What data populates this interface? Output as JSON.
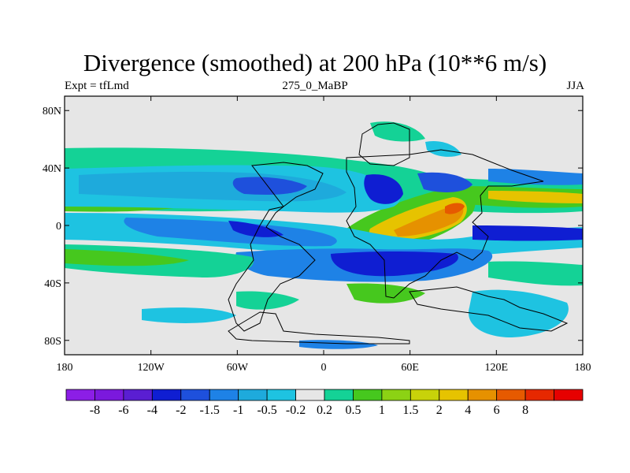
{
  "title": "Divergence (smoothed) at 200 hPa (10**6 m/s)",
  "subtitle_left": "Expt = tfLmd",
  "subtitle_center": "275_0_MaBP",
  "subtitle_right": "JJA",
  "lat_labels": [
    "80N",
    "40N",
    "0",
    "40S",
    "80S"
  ],
  "lat_values": [
    80,
    40,
    0,
    -40,
    -80
  ],
  "lon_labels": [
    "180",
    "120W",
    "60W",
    "0",
    "60E",
    "120E",
    "180"
  ],
  "lon_values": [
    -180,
    -120,
    -60,
    0,
    60,
    120,
    180
  ],
  "colorbar": {
    "colors": [
      "#8c1ee6",
      "#7b19dd",
      "#5a1ed2",
      "#0f1ed2",
      "#1e50dc",
      "#1e82e6",
      "#1eaadc",
      "#1ec3e1",
      "#e6e6e6",
      "#14d296",
      "#46c81e",
      "#8cd214",
      "#c8d20a",
      "#e6c300",
      "#e69100",
      "#e65a00",
      "#e62800",
      "#e60000"
    ],
    "labels": [
      "-8",
      "-6",
      "-4",
      "-2",
      "-1.5",
      "-1",
      "-0.5",
      "-0.2",
      "0.2",
      "0.5",
      "1",
      "1.5",
      "2",
      "4",
      "6",
      "8"
    ]
  }
}
